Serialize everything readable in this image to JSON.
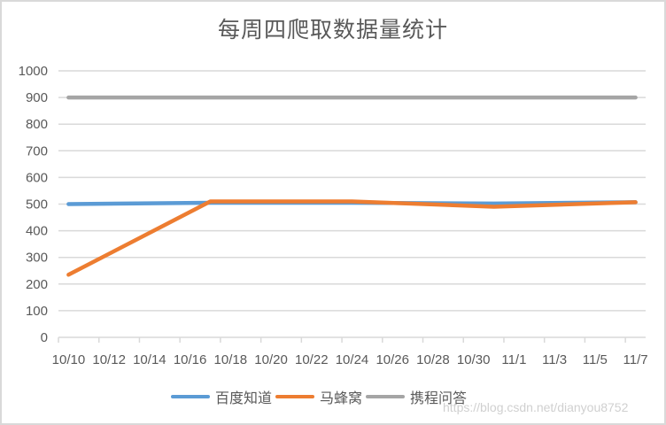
{
  "chart_data": {
    "type": "line",
    "title": "每周四爬取数据量统计",
    "xlabel": "",
    "ylabel": "",
    "ylim": [
      0,
      1000
    ],
    "y_ticks": [
      0,
      100,
      200,
      300,
      400,
      500,
      600,
      700,
      800,
      900,
      1000
    ],
    "x_tick_labels": [
      "10/10",
      "10/12",
      "10/14",
      "10/16",
      "10/18",
      "10/20",
      "10/22",
      "10/24",
      "10/26",
      "10/28",
      "10/30",
      "11/1",
      "11/3",
      "11/5",
      "11/7"
    ],
    "x": [
      "10/10",
      "10/17",
      "10/24",
      "10/31",
      "11/7"
    ],
    "x_day_offsets": [
      0,
      7,
      14,
      21,
      28
    ],
    "series": [
      {
        "name": "百度知道",
        "color": "#5b9bd5",
        "values": [
          500,
          505,
          505,
          502,
          507
        ]
      },
      {
        "name": "马蜂窝",
        "color": "#ed7d31",
        "values": [
          235,
          510,
          510,
          490,
          507
        ]
      },
      {
        "name": "携程问答",
        "color": "#a5a5a5",
        "values": [
          900,
          900,
          900,
          900,
          900
        ]
      }
    ],
    "grid": true,
    "legend_position": "bottom"
  },
  "watermark": "https://blog.csdn.net/dianyou8752"
}
